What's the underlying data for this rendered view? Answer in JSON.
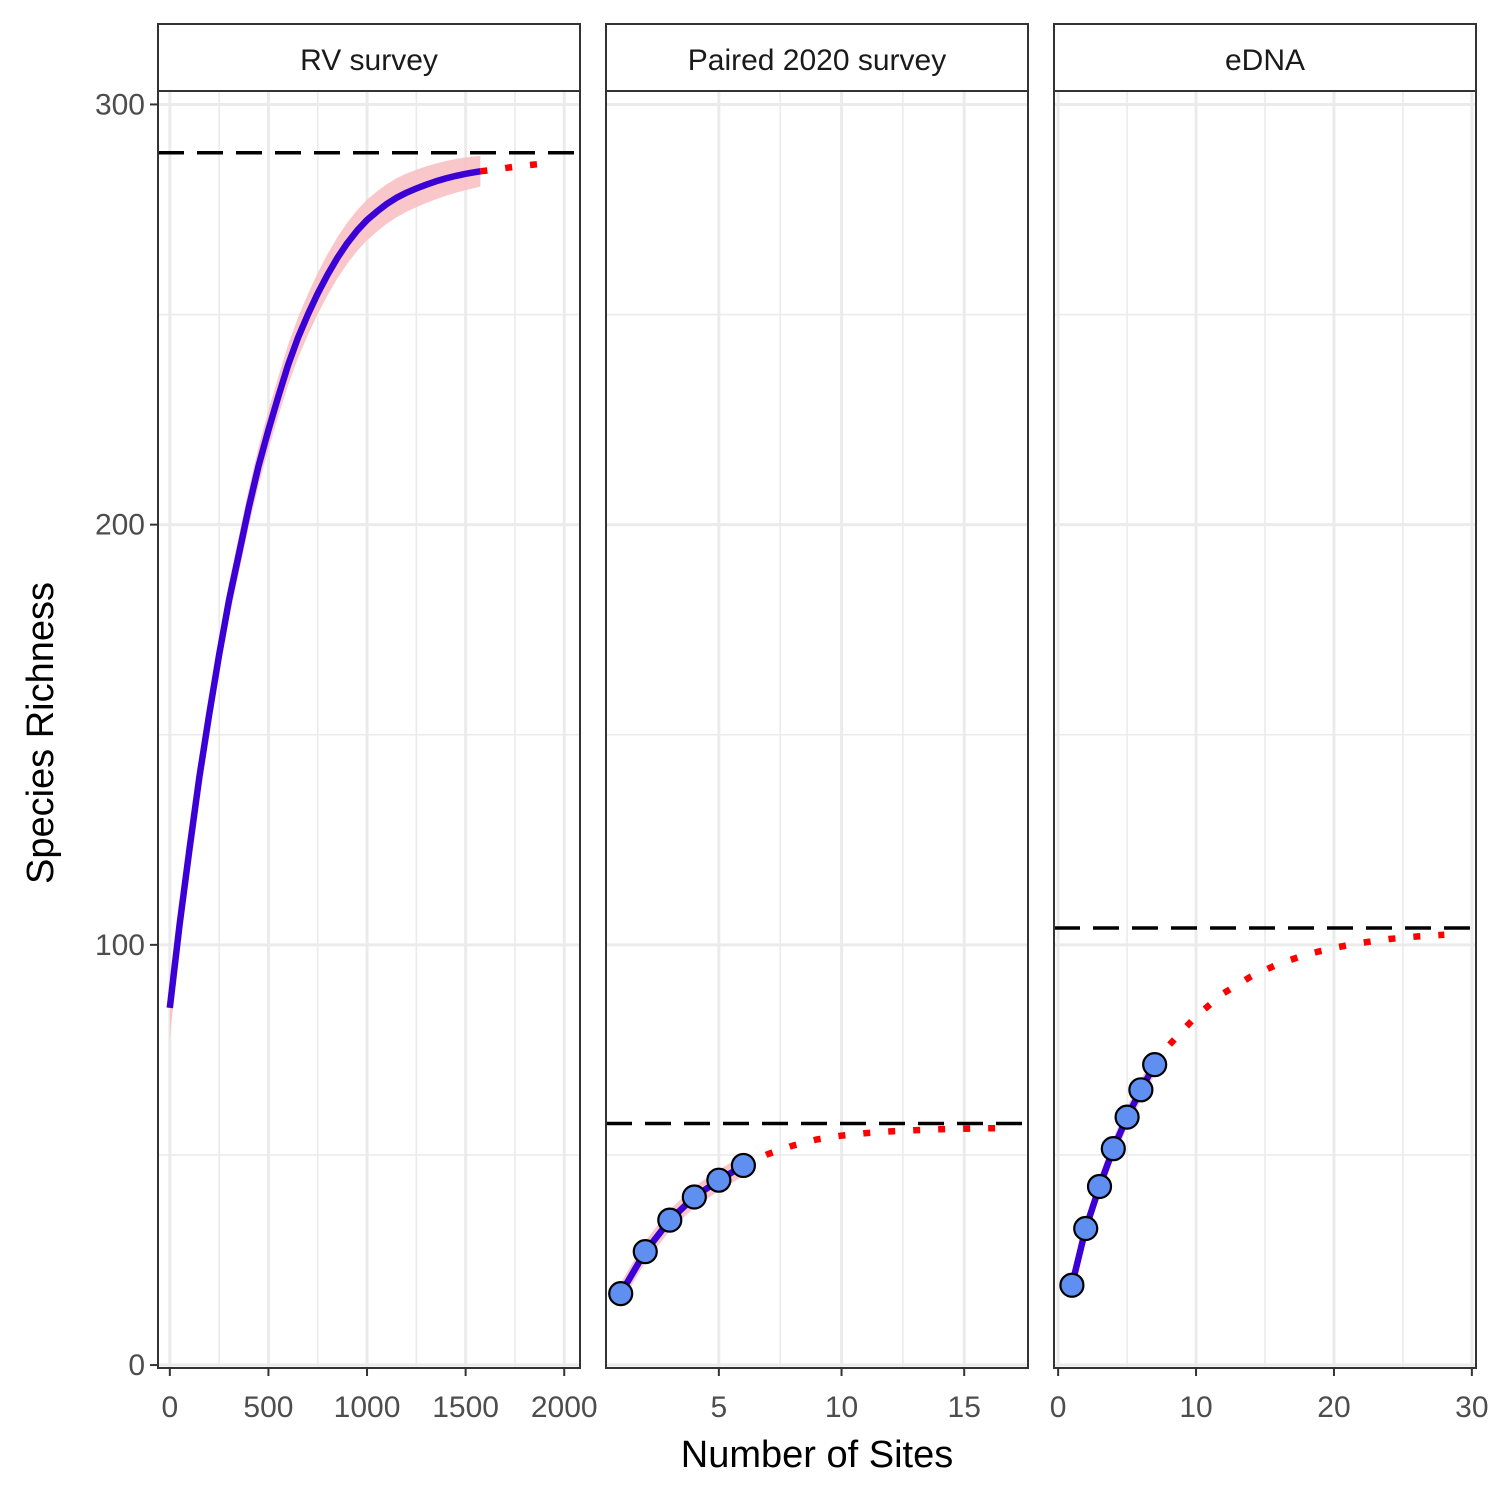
{
  "chart_data": {
    "type": "line",
    "ylabel": "Species Richness",
    "xlabel": "Number of Sites",
    "ylim": [
      0,
      300
    ],
    "yticks": [
      0,
      100,
      200,
      300
    ],
    "panels": [
      {
        "title": "RV survey",
        "xlim": [
          -60,
          2080
        ],
        "xticks": [
          0,
          500,
          1000,
          1500,
          2000
        ],
        "asymptote": 288.5,
        "observed": {
          "x": [
            0,
            50,
            100,
            150,
            200,
            250,
            300,
            350,
            400,
            450,
            500,
            550,
            600,
            650,
            700,
            750,
            800,
            850,
            900,
            950,
            1000,
            1050,
            1100,
            1150,
            1200,
            1250,
            1300,
            1350,
            1400,
            1450,
            1500,
            1550,
            1575
          ],
          "y": [
            85,
            105,
            123,
            140,
            155,
            169,
            182,
            193,
            204,
            214,
            222.5,
            230.5,
            238,
            244.5,
            250,
            255,
            259.5,
            263.5,
            267,
            270,
            272.5,
            274.5,
            276.3,
            277.8,
            279,
            280,
            280.9,
            281.7,
            282.4,
            283,
            283.5,
            283.9,
            284.1
          ]
        },
        "extrapolated": {
          "x": [
            1575,
            1650,
            1750,
            1850,
            1950
          ],
          "y": [
            284.1,
            284.5,
            285.2,
            285.7,
            286.1
          ]
        },
        "points": []
      },
      {
        "title": "Paired 2020 survey",
        "xlim": [
          0.4,
          17.6
        ],
        "xticks": [
          5,
          10,
          15
        ],
        "asymptote": 57.5,
        "observed": {
          "x": [
            1,
            2,
            3,
            4,
            5,
            6
          ],
          "y": [
            17,
            27,
            34.5,
            40,
            44,
            47.5
          ]
        },
        "extrapolated": {
          "x": [
            6,
            7,
            8,
            9,
            10,
            11,
            12,
            13,
            14,
            15,
            16,
            16.5
          ],
          "y": [
            47.5,
            50.2,
            52.2,
            53.7,
            54.6,
            55.2,
            55.6,
            55.9,
            56.1,
            56.25,
            56.35,
            56.4
          ]
        },
        "points": {
          "x": [
            1,
            2,
            3,
            4,
            5,
            6
          ],
          "y": [
            17,
            27,
            34.5,
            40,
            44,
            47.5
          ]
        }
      },
      {
        "title": "eDNA",
        "xlim": [
          -0.3,
          30.3
        ],
        "xticks": [
          0,
          10,
          20,
          30
        ],
        "asymptote": 104,
        "observed": {
          "x": [
            1,
            2,
            3,
            4,
            5,
            6,
            7
          ],
          "y": [
            19,
            32.5,
            42.5,
            51.5,
            59,
            65.5,
            71.5
          ]
        },
        "extrapolated": {
          "x": [
            7,
            8,
            10,
            12,
            14,
            16,
            18,
            20,
            22,
            24,
            26,
            28
          ],
          "y": [
            71.5,
            76,
            83,
            88.5,
            92.5,
            95.5,
            97.7,
            99.3,
            100.5,
            101.4,
            102,
            102.4
          ]
        },
        "points": {
          "x": [
            1,
            2,
            3,
            4,
            5,
            6,
            7
          ],
          "y": [
            19,
            32.5,
            42.5,
            51.5,
            59,
            65.5,
            71.5
          ]
        }
      }
    ]
  },
  "colors": {
    "observed_line": "#3b00d6",
    "extrapolated_line": "#ff0000",
    "ci_ribbon": "#f8c0c4",
    "point_fill": "#5f8ff0",
    "asymptote": "#000000",
    "grid": "#ebebeb"
  }
}
